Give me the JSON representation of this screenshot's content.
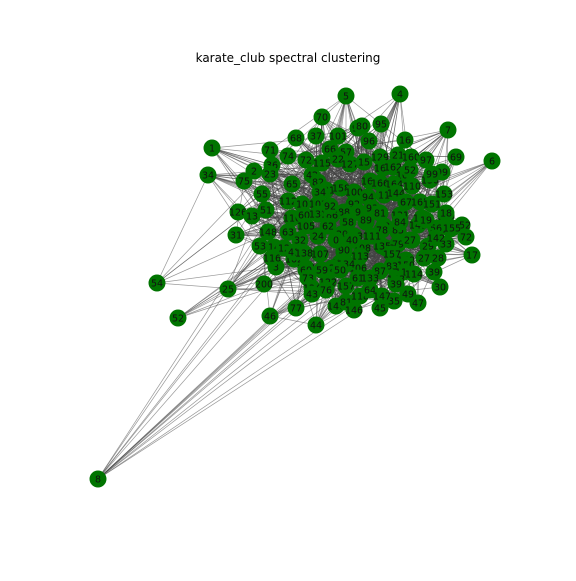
{
  "title": "karate_club spectral clustering",
  "colors": {
    "node": "#007400",
    "node_stroke": "#005a00",
    "edge": "#444444",
    "label": "#111111",
    "background": "#ffffff"
  },
  "graph": {
    "labels": [
      "4",
      "5",
      "70",
      "98",
      "1",
      "7",
      "6",
      "34",
      "69",
      "95",
      "101",
      "37",
      "68",
      "96",
      "80",
      "57",
      "71",
      "66",
      "16",
      "21",
      "160",
      "97",
      "74",
      "72",
      "115",
      "126",
      "22",
      "127",
      "129",
      "15",
      "36",
      "2",
      "23",
      "65",
      "42",
      "82",
      "121",
      "158",
      "100",
      "161",
      "163",
      "166",
      "162",
      "104",
      "164",
      "110",
      "130",
      "99",
      "153",
      "75",
      "3",
      "55",
      "112",
      "10",
      "103",
      "92",
      "9",
      "94",
      "11",
      "93",
      "144",
      "67",
      "165",
      "131",
      "141",
      "151",
      "119",
      "14",
      "18",
      "13",
      "51",
      "116",
      "60",
      "136",
      "139",
      "88",
      "86",
      "91",
      "81",
      "105",
      "62",
      "58",
      "63",
      "31",
      "38",
      "48",
      "148",
      "32",
      "24",
      "20",
      "123",
      "89",
      "26",
      "108",
      "85",
      "40",
      "152",
      "125",
      "79",
      "132",
      "135",
      "78",
      "56",
      "29",
      "72",
      "17",
      "33",
      "116",
      "102",
      "12",
      "137",
      "107",
      "41",
      "138",
      "96",
      "113",
      "27",
      "120",
      "106",
      "60",
      "134",
      "128",
      "90",
      "157",
      "83",
      "149",
      "27",
      "59",
      "50",
      "73",
      "124",
      "122",
      "150",
      "87",
      "117",
      "143",
      "77",
      "76",
      "43",
      "44",
      "140",
      "81",
      "118",
      "45",
      "28",
      "35",
      "49",
      "47",
      "39",
      "30",
      "200",
      "25",
      "46",
      "54",
      "52",
      "157",
      "64",
      "61",
      "8",
      "53",
      "111",
      "99",
      "154",
      "39",
      "19",
      "142",
      "155",
      "84",
      "114",
      "133",
      "146",
      "147",
      "92",
      "34",
      "52",
      "0"
    ]
  }
}
